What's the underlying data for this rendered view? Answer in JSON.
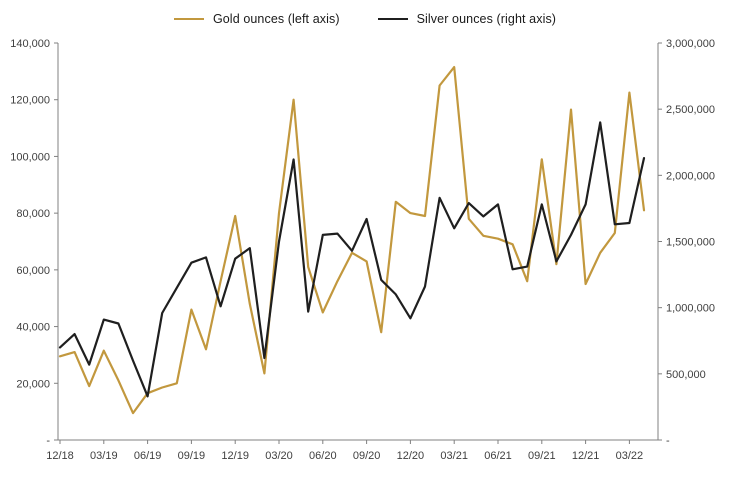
{
  "legend": {
    "gold_label": "Gold ounces (left axis)",
    "silver_label": "Silver ounces (right axis)"
  },
  "chart_data": {
    "type": "line",
    "title": "",
    "x_tick_labels": [
      "12/18",
      "03/19",
      "06/19",
      "09/19",
      "12/19",
      "03/20",
      "06/20",
      "09/20",
      "12/20",
      "03/21",
      "06/21",
      "09/21",
      "12/21",
      "03/22"
    ],
    "categories": [
      "12/18",
      "01/19",
      "02/19",
      "03/19",
      "04/19",
      "05/19",
      "06/19",
      "07/19",
      "08/19",
      "09/19",
      "10/19",
      "11/19",
      "12/19",
      "01/20",
      "02/20",
      "03/20",
      "04/20",
      "05/20",
      "06/20",
      "07/20",
      "08/20",
      "09/20",
      "10/20",
      "11/20",
      "12/20",
      "01/21",
      "02/21",
      "03/21",
      "04/21",
      "05/21",
      "06/21",
      "07/21",
      "08/21",
      "09/21",
      "10/21",
      "11/21",
      "12/21",
      "01/22",
      "02/22",
      "03/22",
      "04/22"
    ],
    "series": [
      {
        "name": "Gold ounces (left axis)",
        "axis": "left",
        "color": "#c2983e",
        "values": [
          29500,
          31000,
          19000,
          31500,
          21000,
          9500,
          16500,
          18500,
          20000,
          46000,
          32000,
          56000,
          79000,
          48000,
          23500,
          80000,
          120000,
          61000,
          45000,
          56000,
          66000,
          63000,
          38000,
          84000,
          80000,
          79000,
          125000,
          131500,
          78000,
          72000,
          71000,
          69000,
          56000,
          99000,
          62000,
          116500,
          55000,
          66000,
          73000,
          122500,
          81000
        ]
      },
      {
        "name": "Silver ounces (right axis)",
        "axis": "right",
        "color": "#1f1f1f",
        "values": [
          700000,
          800000,
          570000,
          910000,
          880000,
          600000,
          330000,
          960000,
          1150000,
          1340000,
          1380000,
          1010000,
          1370000,
          1450000,
          620000,
          1500000,
          2120000,
          970000,
          1550000,
          1560000,
          1430000,
          1670000,
          1210000,
          1100000,
          920000,
          1160000,
          1830000,
          1600000,
          1790000,
          1690000,
          1780000,
          1290000,
          1310000,
          1780000,
          1350000,
          1550000,
          1780000,
          2400000,
          1630000,
          1640000,
          2130000
        ]
      }
    ],
    "y_left_axis": {
      "min": 0,
      "max": 140000,
      "tick_step": 20000,
      "tick_labels": [
        "-",
        "20,000",
        "40,000",
        "60,000",
        "80,000",
        "100,000",
        "120,000",
        "140,000"
      ]
    },
    "y_right_axis": {
      "min": 0,
      "max": 3000000,
      "tick_step": 500000,
      "tick_labels": [
        "-",
        "500,000",
        "1,000,000",
        "1,500,000",
        "2,000,000",
        "2,500,000",
        "3,000,000"
      ]
    },
    "grid": "off",
    "legend_position": "top",
    "axis_color": "#808080",
    "label_color": "#3f3f3f"
  }
}
